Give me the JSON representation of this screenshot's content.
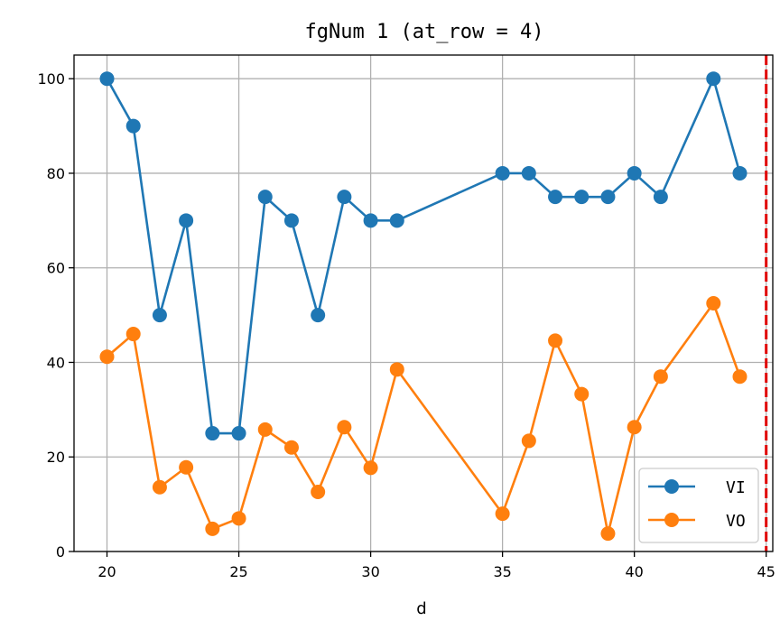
{
  "chart_data": {
    "type": "line",
    "title": "fgNum 1 (at_row = 4)",
    "xlabel": "d",
    "ylabel": "",
    "xlim": [
      18.75,
      45.25
    ],
    "ylim": [
      0,
      105
    ],
    "xticks": [
      20,
      25,
      30,
      35,
      40,
      45
    ],
    "yticks": [
      0,
      20,
      40,
      60,
      80,
      100
    ],
    "grid": true,
    "legend_position": "bottom-right",
    "vline": {
      "x": 45,
      "color": "#e00000",
      "style": "dashed"
    },
    "series": [
      {
        "name": "VI",
        "color": "#1f77b4",
        "marker": "circle",
        "x": [
          20,
          21,
          22,
          23,
          24,
          25,
          26,
          27,
          28,
          29,
          30,
          31,
          35,
          36,
          37,
          38,
          39,
          40,
          41,
          43,
          44
        ],
        "y": [
          100,
          90,
          50,
          70,
          25,
          25,
          75,
          70,
          50,
          75,
          70,
          70,
          80,
          80,
          75,
          75,
          75,
          80,
          75,
          100,
          80
        ]
      },
      {
        "name": "VO",
        "color": "#ff7f0e",
        "marker": "circle",
        "x": [
          20,
          21,
          22,
          23,
          24,
          25,
          26,
          27,
          28,
          29,
          30,
          31,
          35,
          36,
          37,
          38,
          39,
          40,
          41,
          43,
          44
        ],
        "y": [
          41.2,
          46,
          13.6,
          17.8,
          4.8,
          7,
          25.8,
          22,
          12.6,
          26.3,
          17.7,
          38.5,
          8,
          23.4,
          44.6,
          33.3,
          3.8,
          26.3,
          37,
          52.5,
          37
        ]
      }
    ]
  }
}
